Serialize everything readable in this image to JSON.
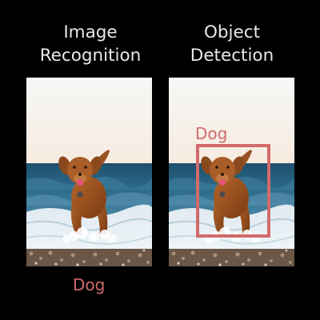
{
  "left_panel": {
    "title_line1": "Image",
    "title_line2": "Recognition",
    "label": "Dog"
  },
  "right_panel": {
    "title_line1": "Object",
    "title_line2": "Detection",
    "box_label": "Dog"
  },
  "colors": {
    "background": "#000000",
    "title_text": "#e9e9e9",
    "accent_red": "#d16a6a"
  }
}
